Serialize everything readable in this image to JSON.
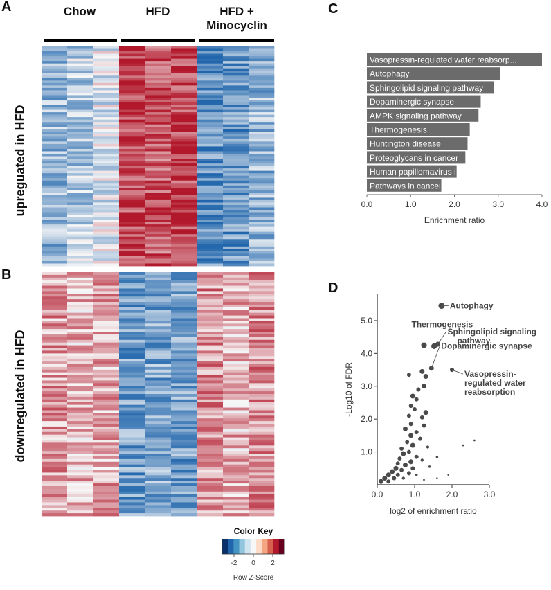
{
  "panels": {
    "a": "A",
    "b": "B",
    "c": "C",
    "d": "D"
  },
  "heatmap": {
    "groups": [
      "Chow",
      "HFD",
      "HFD +\nMinocyclin"
    ],
    "rows": [
      "upreguated in HFD",
      "downregulated in HFD"
    ],
    "colors": {
      "neg": "#2166ac",
      "mid": "#f7f7f7",
      "pos": "#b2182b"
    }
  },
  "color_key": {
    "title": "Color Key",
    "ticks": [
      "-2",
      "0",
      "2"
    ],
    "label": "Row Z-Score",
    "colors": [
      "#08306b",
      "#2166ac",
      "#4393c3",
      "#92c5de",
      "#d1e5f0",
      "#f7f7f7",
      "#fddbc7",
      "#f4a582",
      "#d6604d",
      "#b2182b",
      "#67001f"
    ]
  },
  "chart_data": [
    {
      "type": "bar",
      "orientation": "horizontal",
      "categories": [
        "Vasopressin-regulated water reabsorp...",
        "Autophagy",
        "Sphingolipid signaling pathway",
        "Dopaminergic synapse",
        "AMPK signaling pathway",
        "Thermogenesis",
        "Huntington disease",
        "Proteoglycans in cancer",
        "Human papillomavirus infection",
        "Pathways in cancer"
      ],
      "values": [
        4.0,
        3.05,
        2.9,
        2.6,
        2.55,
        2.35,
        2.3,
        2.25,
        2.05,
        1.7
      ],
      "xlabel": "Enrichment ratio",
      "xlim": [
        0,
        4.0
      ],
      "xticks": [
        "0.0",
        "1.0",
        "2.0",
        "3.0",
        "4.0"
      ],
      "bar_color": "#6b6b6b"
    },
    {
      "type": "scatter",
      "xlabel": "log2 of enrichment ratio",
      "ylabel": "-Log10 of FDR",
      "xlim": [
        0,
        3.0
      ],
      "ylim": [
        0,
        5.8
      ],
      "xticks": [
        "0.0",
        "1.0",
        "2.0",
        "3.0"
      ],
      "yticks": [
        "1.0",
        "2.0",
        "3.0",
        "4.0",
        "5.0"
      ],
      "points": [
        [
          1.72,
          5.45,
          3.3
        ],
        [
          1.52,
          4.22,
          3
        ],
        [
          1.25,
          4.25,
          3
        ],
        [
          1.62,
          4.28,
          2.6
        ],
        [
          1.45,
          3.55,
          2.6
        ],
        [
          2.0,
          3.5,
          2.3
        ],
        [
          1.2,
          3.45,
          2.6
        ],
        [
          1.3,
          3.3,
          2.6
        ],
        [
          0.85,
          3.35,
          2.2
        ],
        [
          1.1,
          2.9,
          2.2
        ],
        [
          1.25,
          3.0,
          2.6
        ],
        [
          1.05,
          2.6,
          2.2
        ],
        [
          0.95,
          2.7,
          2.6
        ],
        [
          0.9,
          2.4,
          2.2
        ],
        [
          1.0,
          2.3,
          2.2
        ],
        [
          1.3,
          2.2,
          2.6
        ],
        [
          1.2,
          2.05,
          2.2
        ],
        [
          0.85,
          2.1,
          2.2
        ],
        [
          0.9,
          1.85,
          2.2
        ],
        [
          1.25,
          1.8,
          2.2
        ],
        [
          0.75,
          1.7,
          2.6
        ],
        [
          1.05,
          1.6,
          2.2
        ],
        [
          0.9,
          1.5,
          2.6
        ],
        [
          1.15,
          1.4,
          2.2
        ],
        [
          0.8,
          1.3,
          2.2
        ],
        [
          0.95,
          1.2,
          2.6
        ],
        [
          0.65,
          1.1,
          2.2
        ],
        [
          1.35,
          1.15,
          1.6
        ],
        [
          0.85,
          1.0,
          2.2
        ],
        [
          0.7,
          0.95,
          2.6
        ],
        [
          1.05,
          0.85,
          2.2
        ],
        [
          0.6,
          0.8,
          2.2
        ],
        [
          0.9,
          0.7,
          2.6
        ],
        [
          1.2,
          0.75,
          1.6
        ],
        [
          0.55,
          0.65,
          2.2
        ],
        [
          0.75,
          0.6,
          2.6
        ],
        [
          1.6,
          0.85,
          1.3
        ],
        [
          0.5,
          0.5,
          2.6
        ],
        [
          0.95,
          0.5,
          2.2
        ],
        [
          0.65,
          0.45,
          2.2
        ],
        [
          1.4,
          0.55,
          1.3
        ],
        [
          0.4,
          0.4,
          2.6
        ],
        [
          0.85,
          0.35,
          2.2
        ],
        [
          0.3,
          0.3,
          2.6
        ],
        [
          0.55,
          0.3,
          2.2
        ],
        [
          1.05,
          0.3,
          1.3
        ],
        [
          0.2,
          0.2,
          2.6
        ],
        [
          0.45,
          0.2,
          2.2
        ],
        [
          0.7,
          0.2,
          1.6
        ],
        [
          0.1,
          0.1,
          2.6
        ],
        [
          0.3,
          0.1,
          2.2
        ],
        [
          1.25,
          0.15,
          1
        ],
        [
          1.9,
          0.3,
          0.9
        ],
        [
          1.6,
          0.2,
          0.9
        ],
        [
          2.6,
          1.35,
          1
        ],
        [
          2.3,
          1.2,
          1
        ]
      ],
      "labels": [
        {
          "text": "Autophagy",
          "point": 0
        },
        {
          "text": "Thermogenesis",
          "point": 2
        },
        {
          "text": "Sphingolipid signaling\npathway",
          "point": 3
        },
        {
          "text": "Dopaminergic synapse",
          "point": 4
        },
        {
          "text": "Vasopressin-\nregulated water\nreabsorption",
          "point": 5
        }
      ],
      "marker_color": "#4a4a4a"
    }
  ]
}
